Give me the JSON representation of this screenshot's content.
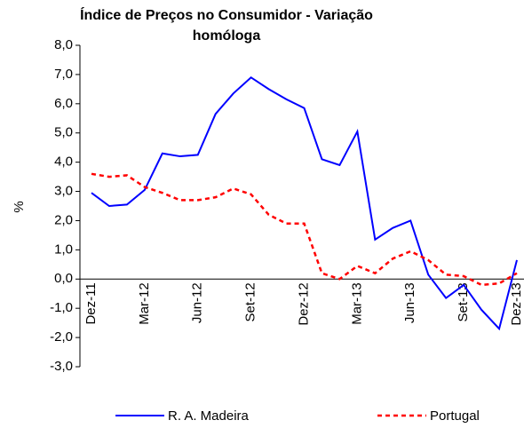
{
  "chart_data": {
    "type": "line",
    "title": "Índice de Preços no Consumidor - Variação homóloga",
    "y_label": "%",
    "categories": [
      "Dez-11",
      null,
      null,
      "Mar-12",
      null,
      null,
      "Jun-12",
      null,
      null,
      "Set-12",
      null,
      null,
      "Dez-12",
      null,
      null,
      "Mar-13",
      null,
      null,
      "Jun-13",
      null,
      null,
      "Set-13",
      null,
      null,
      "Dez-13"
    ],
    "series": [
      {
        "name": "R. A. Madeira",
        "color": "#0000ff",
        "dash": "solid",
        "values": [
          2.95,
          2.5,
          2.55,
          3.05,
          4.3,
          4.2,
          4.25,
          5.65,
          6.35,
          6.9,
          6.5,
          6.15,
          5.85,
          4.1,
          3.9,
          5.05,
          1.35,
          1.75,
          2.0,
          0.15,
          -0.65,
          -0.2,
          -1.05,
          -1.7,
          0.65
        ]
      },
      {
        "name": "Portugal",
        "color": "#ff0000",
        "dash": "dashed",
        "values": [
          3.6,
          3.5,
          3.55,
          3.15,
          2.95,
          2.7,
          2.7,
          2.8,
          3.1,
          2.9,
          2.2,
          1.9,
          1.9,
          0.2,
          0.0,
          0.45,
          0.2,
          0.7,
          0.95,
          0.65,
          0.15,
          0.1,
          -0.2,
          -0.15,
          0.2
        ]
      }
    ],
    "ylim": [
      -3,
      8
    ],
    "yticks": [
      {
        "value": -3,
        "label": "-3,0"
      },
      {
        "value": -2,
        "label": "-2,0"
      },
      {
        "value": -1,
        "label": "-1,0"
      },
      {
        "value": 0,
        "label": "0,0"
      },
      {
        "value": 1,
        "label": "1,0"
      },
      {
        "value": 2,
        "label": "2,0"
      },
      {
        "value": 3,
        "label": "3,0"
      },
      {
        "value": 4,
        "label": "4,0"
      },
      {
        "value": 5,
        "label": "5,0"
      },
      {
        "value": 6,
        "label": "6,0"
      },
      {
        "value": 7,
        "label": "7,0"
      },
      {
        "value": 8,
        "label": "8,0"
      }
    ],
    "grid": false,
    "legend": "bottom"
  }
}
